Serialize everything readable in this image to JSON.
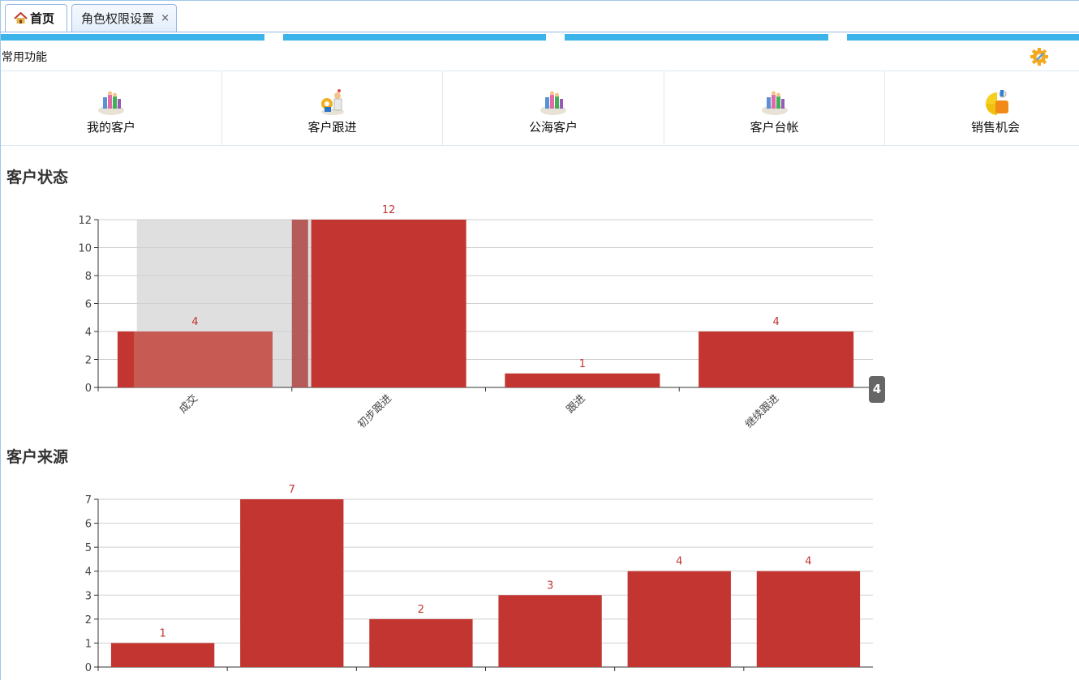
{
  "tabs": [
    {
      "label": "首页",
      "icon": "home-icon"
    },
    {
      "label": "角色权限设置",
      "close": "×"
    }
  ],
  "colors": {
    "stripe": "#3cb4ea",
    "bar": "#c23531",
    "tab_border": "#95b8e7"
  },
  "common": {
    "title": "常用功能",
    "settings_icon": "gear-icon",
    "items": [
      {
        "label": "我的客户",
        "icon": "customers-icon"
      },
      {
        "label": "客户跟进",
        "icon": "followup-icon"
      },
      {
        "label": "公海客户",
        "icon": "public-customers-icon"
      },
      {
        "label": "客户台帐",
        "icon": "ledger-icon"
      },
      {
        "label": "销售机会",
        "icon": "sales-opportunity-icon"
      }
    ]
  },
  "sections": {
    "status_title": "客户状态",
    "source_title": "客户来源"
  },
  "tooltip": {
    "value": "4"
  },
  "chart_data": [
    {
      "type": "bar",
      "title": "客户状态",
      "categories": [
        "成交",
        "初步跟进",
        "跟进",
        "继续跟进"
      ],
      "values": [
        4,
        12,
        1,
        4
      ],
      "ylim": [
        0,
        12
      ],
      "yticks": [
        0,
        2,
        4,
        6,
        8,
        10,
        12
      ],
      "grid": true,
      "highlighted_category": "成交"
    },
    {
      "type": "bar",
      "title": "客户来源",
      "categories": [
        "",
        "",
        "",
        "",
        "",
        ""
      ],
      "values": [
        1,
        7,
        2,
        3,
        4,
        4
      ],
      "ylim": [
        0,
        7
      ],
      "yticks": [
        0,
        1,
        2,
        3,
        4,
        5,
        6,
        7
      ],
      "grid": true
    }
  ]
}
